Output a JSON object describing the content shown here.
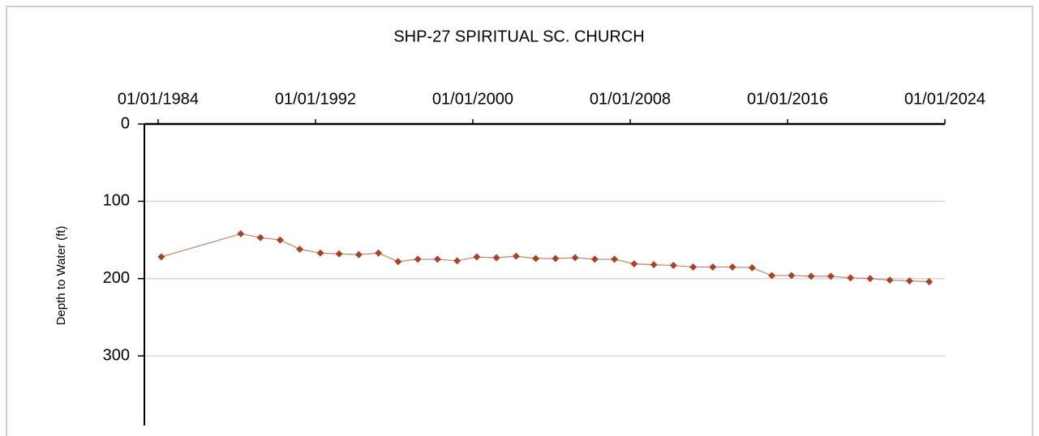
{
  "chart_data": {
    "type": "line",
    "title": "SHP-27  SPIRITUAL SC. CHURCH",
    "y_label": "Depth to Water (ft)",
    "y_inverted": true,
    "x_axis_position": "top",
    "grid": true,
    "xlim": [
      1983.3,
      2024
    ],
    "xticks": [
      {
        "value": 1984,
        "label": "01/01/1984"
      },
      {
        "value": 1992,
        "label": "01/01/1992"
      },
      {
        "value": 2000,
        "label": "01/01/2000"
      },
      {
        "value": 2008,
        "label": "01/01/2008"
      },
      {
        "value": 2016,
        "label": "01/01/2016"
      },
      {
        "value": 2024,
        "label": "01/01/2024"
      }
    ],
    "ylim": [
      0,
      390
    ],
    "yticks": [
      0,
      100,
      200,
      300
    ],
    "x": [
      1984.16,
      1988.2,
      1989.2,
      1990.2,
      1991.2,
      1992.25,
      1993.2,
      1994.2,
      1995.2,
      1996.2,
      1997.2,
      1998.2,
      1999.2,
      2000.2,
      2001.2,
      2002.2,
      2003.2,
      2004.2,
      2005.2,
      2006.2,
      2007.2,
      2008.2,
      2009.2,
      2010.2,
      2011.2,
      2012.2,
      2013.2,
      2014.2,
      2015.2,
      2016.2,
      2017.2,
      2018.2,
      2019.2,
      2020.2,
      2021.2,
      2022.2,
      2023.2
    ],
    "series": [
      {
        "color": "#a3452b",
        "line_color": "#c08070",
        "values": [
          172,
          142,
          147,
          150,
          162,
          167,
          168,
          169,
          167,
          178,
          175,
          175,
          177,
          172,
          173,
          171,
          174,
          174,
          173,
          175,
          175,
          181,
          182,
          183,
          185,
          185,
          185,
          186,
          196,
          196,
          197,
          197,
          199,
          200,
          202,
          203,
          204
        ]
      }
    ]
  }
}
